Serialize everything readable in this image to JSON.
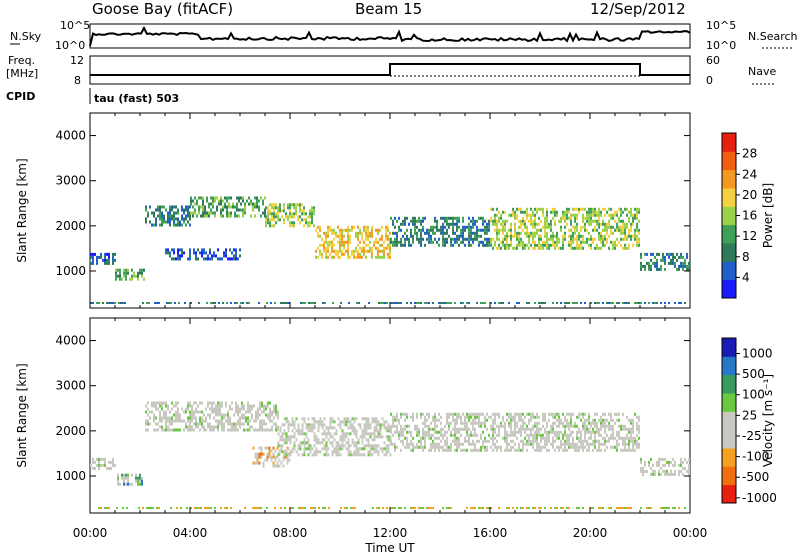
{
  "header": {
    "station": "Goose Bay (fitACF)",
    "beam": "Beam 15",
    "date": "12/Sep/2012"
  },
  "top_strip": {
    "left_labels": {
      "nsky": "N.Sky",
      "freq": "Freq.",
      "freq_unit": "[MHz]",
      "cpid": "CPID"
    },
    "right_labels": {
      "nsearch": "N.Search",
      "nave": "Nave"
    },
    "noise_ticks": [
      "10^5",
      "10^0"
    ],
    "noise_ticks_right": [
      "10^5",
      "10^0"
    ],
    "freq_ticks": [
      "12",
      "8"
    ],
    "nave_ticks": [
      "60",
      "0"
    ],
    "cpid_text": "tau (fast) 503"
  },
  "chart_data": [
    {
      "type": "heatmap",
      "name": "power-panel",
      "ylabel": "Slant Range [km]",
      "ylim": [
        180,
        4500
      ],
      "yticks": [
        "1000",
        "2000",
        "3000",
        "4000"
      ],
      "xlim": [
        0,
        24
      ],
      "colorbar": {
        "label": "Power [dB]",
        "ticks": [
          "4",
          "8",
          "12",
          "16",
          "20",
          "24",
          "28"
        ],
        "colors": [
          "#1a1aff",
          "#2060c8",
          "#2f7a5a",
          "#3fa05a",
          "#9ad04a",
          "#f5d040",
          "#f59a20",
          "#f06010",
          "#e82010"
        ]
      },
      "regions": [
        {
          "t0": 0.0,
          "t1": 1.0,
          "r0": 1150,
          "r1": 1400,
          "level": 1
        },
        {
          "t0": 1.0,
          "t1": 2.2,
          "r0": 800,
          "r1": 1050,
          "level": 3
        },
        {
          "t0": 2.2,
          "t1": 4.0,
          "r0": 2050,
          "r1": 2450,
          "level": 2
        },
        {
          "t0": 3.0,
          "t1": 6.0,
          "r0": 1300,
          "r1": 1500,
          "level": 1
        },
        {
          "t0": 4.0,
          "t1": 7.0,
          "r0": 2200,
          "r1": 2650,
          "level": 3
        },
        {
          "t0": 7.0,
          "t1": 9.0,
          "r0": 2000,
          "r1": 2500,
          "level": 4
        },
        {
          "t0": 9.0,
          "t1": 12.0,
          "r0": 1300,
          "r1": 2000,
          "level": 5
        },
        {
          "t0": 12.0,
          "t1": 16.0,
          "r0": 1600,
          "r1": 2200,
          "level": 2
        },
        {
          "t0": 16.0,
          "t1": 22.0,
          "r0": 1500,
          "r1": 2400,
          "level": 4
        },
        {
          "t0": 22.0,
          "t1": 24.0,
          "r0": 1050,
          "r1": 1400,
          "level": 2
        }
      ]
    },
    {
      "type": "heatmap",
      "name": "velocity-panel",
      "ylabel": "Slant Range [km]",
      "xlabel": "Time UT",
      "ylim": [
        180,
        4500
      ],
      "yticks": [
        "1000",
        "2000",
        "3000",
        "4000"
      ],
      "xlim": [
        0,
        24
      ],
      "xticks": [
        "00:00",
        "04:00",
        "08:00",
        "12:00",
        "16:00",
        "20:00",
        "00:00"
      ],
      "colorbar": {
        "label": "Velocity [m s⁻¹]",
        "ticks": [
          "1000",
          "500",
          "100",
          "25",
          "-25",
          "-100",
          "-500",
          "-1000"
        ],
        "colors": [
          "#1a1ab4",
          "#2878c8",
          "#3a9a60",
          "#6ac840",
          "#c8c8c0",
          "#c8c8c0",
          "#f5a020",
          "#f07010",
          "#e82010"
        ]
      },
      "regions": [
        {
          "t0": 0.0,
          "t1": 1.0,
          "r0": 1150,
          "r1": 1400,
          "level": 4
        },
        {
          "t0": 1.0,
          "t1": 2.2,
          "r0": 800,
          "r1": 1050,
          "level": 2
        },
        {
          "t0": 2.2,
          "t1": 7.5,
          "r0": 2050,
          "r1": 2650,
          "level": 4
        },
        {
          "t0": 6.5,
          "t1": 8.0,
          "r0": 1250,
          "r1": 1650,
          "level": 6
        },
        {
          "t0": 7.5,
          "t1": 12.0,
          "r0": 1500,
          "r1": 2300,
          "level": 4
        },
        {
          "t0": 12.0,
          "t1": 22.0,
          "r0": 1600,
          "r1": 2400,
          "level": 4
        },
        {
          "t0": 22.0,
          "t1": 24.0,
          "r0": 1050,
          "r1": 1400,
          "level": 4
        }
      ]
    }
  ]
}
